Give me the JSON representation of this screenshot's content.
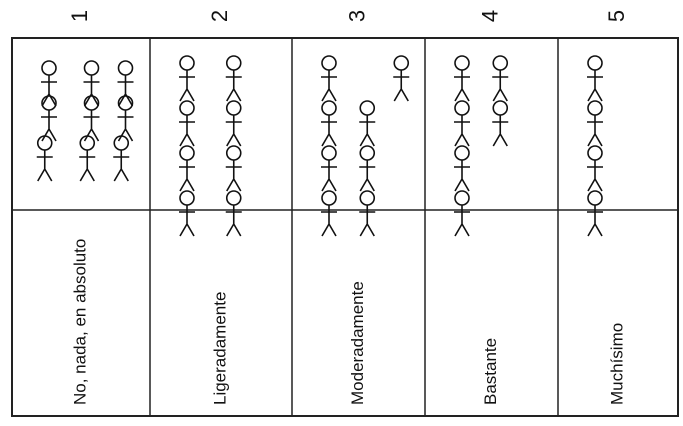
{
  "scale": [
    {
      "number": "1",
      "label": "No, nada, en absoluto"
    },
    {
      "number": "2",
      "label": "Ligeradamente"
    },
    {
      "number": "3",
      "label": "Moderadamente"
    },
    {
      "number": "4",
      "label": "Bastante"
    },
    {
      "number": "5",
      "label": "Muchísimo"
    }
  ]
}
